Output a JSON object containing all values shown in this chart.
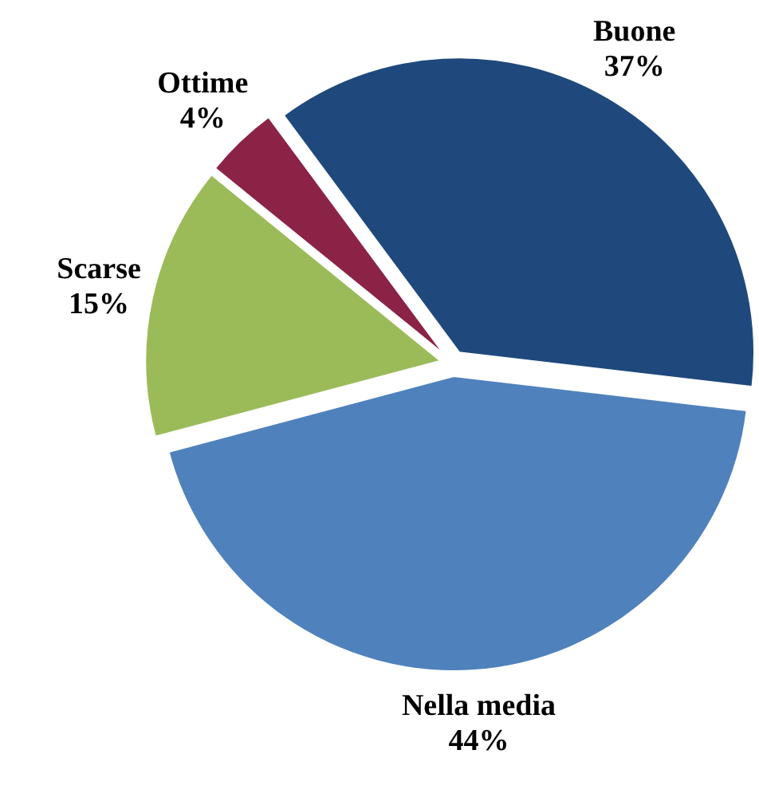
{
  "chart_data": {
    "type": "pie",
    "categories": [
      "Buone",
      "Nella media",
      "Scarse",
      "Ottime"
    ],
    "values": [
      37,
      44,
      15,
      4
    ],
    "colors": [
      "#1f497d",
      "#4f81bd",
      "#9bbb59",
      "#8b2346"
    ],
    "value_labels": [
      "37%",
      "44%",
      "15%",
      "4%"
    ]
  }
}
